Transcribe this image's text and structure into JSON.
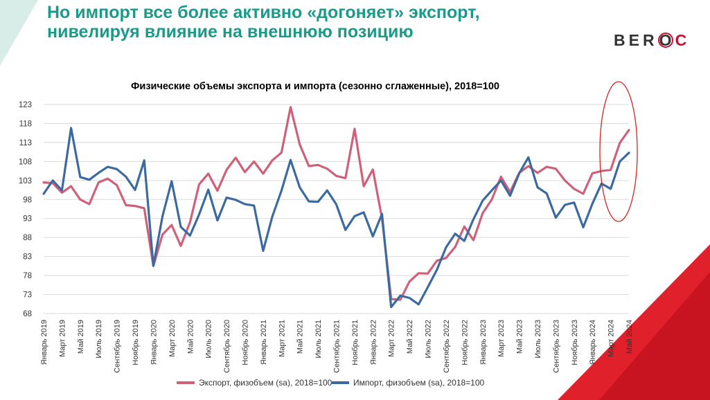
{
  "slide": {
    "title_line1": "Но импорт все более активно «догоняет» экспорт,",
    "title_line2": "нивелируя влияние на внешнюю позицию",
    "logo_b": "B",
    "logo_e": "E",
    "logo_r": "R",
    "logo_o": "O",
    "logo_c": "C"
  },
  "colors": {
    "title": "#1a9a8a",
    "export": "#d0607a",
    "import": "#3b6aa0",
    "highlight": "#d92121",
    "accent_red": "#e0202a",
    "accent_teal": "#d8ece8"
  },
  "chart_data": {
    "type": "line",
    "title": "Физические объемы экспорта и импорта (сезонно сглаженные), 2018=100",
    "ylim": [
      68,
      123
    ],
    "yticks": [
      "123",
      "118",
      "113",
      "108",
      "103",
      "98",
      "93",
      "88",
      "83",
      "78",
      "73",
      "68"
    ],
    "grid": true,
    "legend_position": "bottom",
    "x": [
      "Январь 2019",
      "Февраль 2019",
      "Март 2019",
      "Апрель 2019",
      "Май 2019",
      "Июнь 2019",
      "Июль 2019",
      "Август 2019",
      "Сентябрь 2019",
      "Октябрь 2019",
      "Ноябрь 2019",
      "Декабрь 2019",
      "Январь 2020",
      "Февраль 2020",
      "Март 2020",
      "Апрель 2020",
      "Май 2020",
      "Июнь 2020",
      "Июль 2020",
      "Август 2020",
      "Сентябрь 2020",
      "Октябрь 2020",
      "Ноябрь 2020",
      "Декабрь 2020",
      "Январь 2021",
      "Февраль 2021",
      "Март 2021",
      "Апрель 2021",
      "Май 2021",
      "Июнь 2021",
      "Июль 2021",
      "Август 2021",
      "Сентябрь 2021",
      "Октябрь 2021",
      "Ноябрь 2021",
      "Декабрь 2021",
      "Январь 2022",
      "Февраль 2022",
      "Март 2022",
      "Апрель 2022",
      "Май 2022",
      "Июнь 2022",
      "Июль 2022",
      "Август 2022",
      "Сентябрь 2022",
      "Октябрь 2022",
      "Ноябрь 2022",
      "Декабрь 2022",
      "Январь 2023",
      "Февраль 2023",
      "Март 2023",
      "Апрель 2023",
      "Май 2023",
      "Июнь 2023",
      "Июль 2023",
      "Август 2023",
      "Сентябрь 2023",
      "Октябрь 2023",
      "Ноябрь 2023",
      "Декабрь 2023",
      "Январь 2024",
      "Февраль 2024",
      "Март 2024",
      "Апрель 2024",
      "Май 2024"
    ],
    "xtick_labels": [
      "Январь 2019",
      "Март 2019",
      "Май 2019",
      "Июль 2019",
      "Сентябрь 2019",
      "Ноябрь 2019",
      "Январь 2020",
      "Март 2020",
      "Май 2020",
      "Июль 2020",
      "Сентябрь 2020",
      "Ноябрь 2020",
      "Январь 2021",
      "Март 2021",
      "Май 2021",
      "Июль 2021",
      "Сентябрь 2021",
      "Ноябрь 2021",
      "Январь 2022",
      "Март 2022",
      "Май 2022",
      "Июль 2022",
      "Сентябрь 2022",
      "Ноябрь 2022",
      "Январь 2023",
      "Март 2023",
      "Май 2023",
      "Июль 2023",
      "Сентябрь 2023",
      "Ноябрь 2023",
      "Январь 2024",
      "Март 2024",
      "Май 2024"
    ],
    "series": [
      {
        "name": "Экспорт, физобъем (sa), 2018=100",
        "values": [
          102.5,
          102.3,
          99.8,
          101.5,
          98.0,
          96.8,
          102.5,
          103.5,
          101.8,
          96.5,
          96.3,
          95.7,
          80.5,
          88.8,
          91.3,
          85.8,
          92.0,
          102.0,
          104.8,
          100.3,
          105.8,
          109.0,
          105.2,
          108.0,
          104.8,
          108.3,
          110.3,
          122.3,
          112.5,
          106.8,
          107.1,
          106.1,
          104.2,
          103.6,
          116.6,
          101.5,
          105.9,
          93.0,
          71.8,
          71.6,
          76.4,
          78.6,
          78.5,
          81.9,
          82.6,
          85.5,
          90.9,
          87.3,
          94.4,
          98.0,
          104.0,
          100.0,
          105.0,
          106.8,
          105.0,
          106.6,
          106.1,
          103.0,
          100.8,
          99.5,
          104.9,
          105.5,
          105.8,
          112.9,
          116.3
        ]
      },
      {
        "name": "Импорт, физобъем (sa), 2018=100",
        "values": [
          99.5,
          103.0,
          100.4,
          116.8,
          103.9,
          103.2,
          105.0,
          106.6,
          106.0,
          104.0,
          100.5,
          108.3,
          80.6,
          93.6,
          102.8,
          90.8,
          88.5,
          94.1,
          100.6,
          92.5,
          98.5,
          97.9,
          96.8,
          96.4,
          84.5,
          93.5,
          100.3,
          108.4,
          101.2,
          97.5,
          97.4,
          100.4,
          96.7,
          90.0,
          93.6,
          94.6,
          88.3,
          94.2,
          69.7,
          72.7,
          72.1,
          70.4,
          74.9,
          79.5,
          85.4,
          89.0,
          87.1,
          92.8,
          97.7,
          100.4,
          103.0,
          99.0,
          104.9,
          109.1,
          101.2,
          99.6,
          93.2,
          96.6,
          97.2,
          90.7,
          96.9,
          102.2,
          100.8,
          108.0,
          110.3
        ]
      }
    ]
  }
}
